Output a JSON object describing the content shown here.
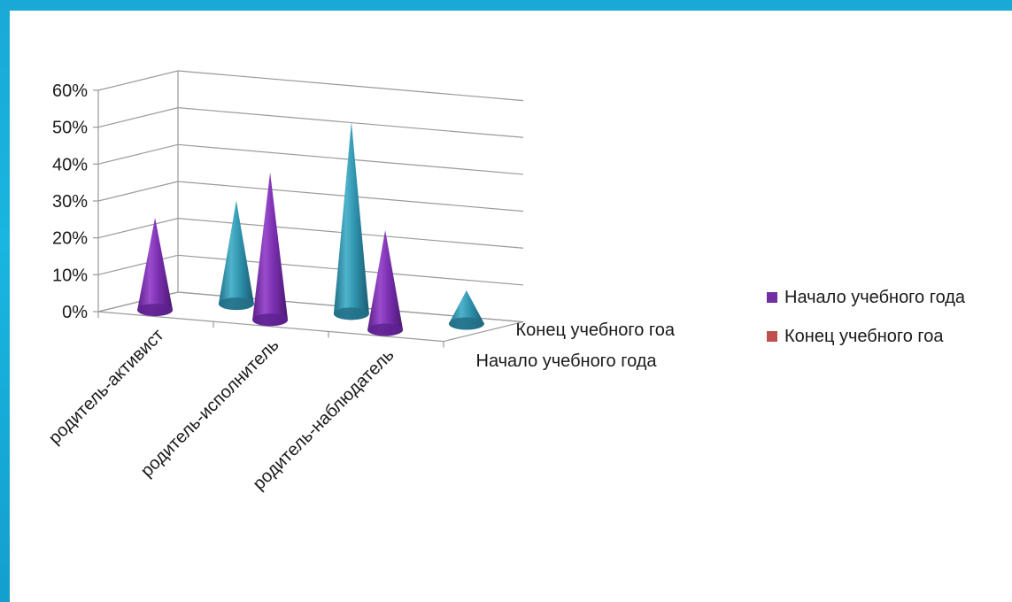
{
  "chart_data": {
    "type": "bar",
    "style": "3d-cone",
    "categories": [
      "родитель-активист",
      "родитель-исполнитель",
      "родитель-наблюдатель"
    ],
    "depth_categories": [
      "Начало учебного года",
      "Конец учебного гоа"
    ],
    "series": [
      {
        "name": "Начало учебного года",
        "values": [
          25,
          40,
          27
        ],
        "color": "#7b2fa8"
      },
      {
        "name": "Конец учебного гоа",
        "values": [
          28,
          52,
          9
        ],
        "color": "#2a8aa5"
      }
    ],
    "yticks": [
      "0%",
      "10%",
      "20%",
      "30%",
      "40%",
      "50%",
      "60%"
    ],
    "ylim": [
      0,
      60
    ],
    "grid": true,
    "legend_position": "right"
  },
  "legend": {
    "items": [
      {
        "label": "Начало учебного года",
        "color": "#7030a0"
      },
      {
        "label": "Конец учебного гоа",
        "color": "#c0504d"
      }
    ]
  }
}
